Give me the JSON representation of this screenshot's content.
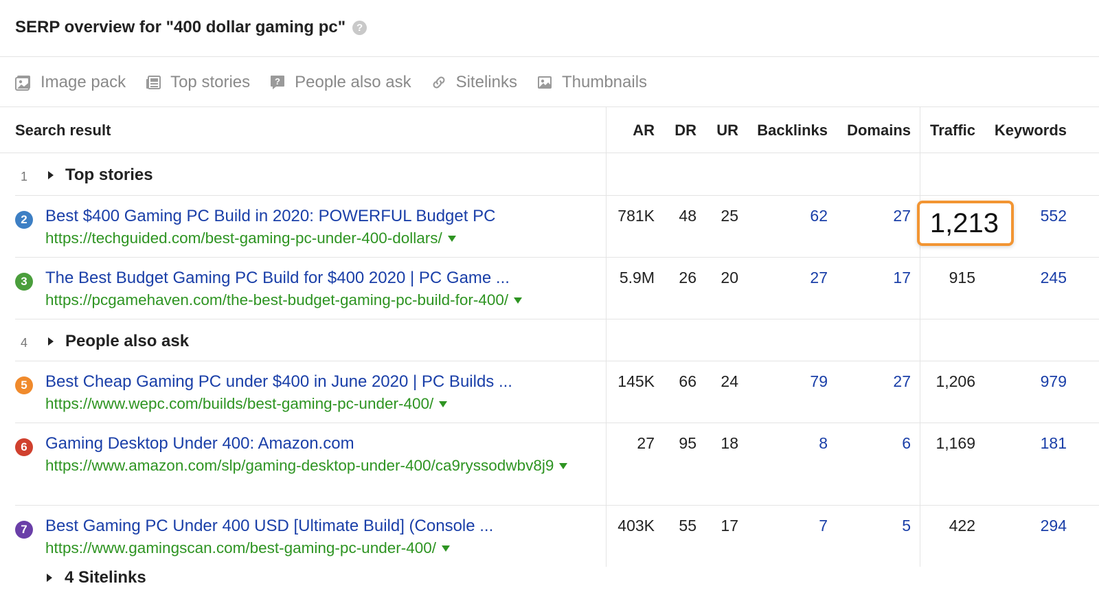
{
  "header": {
    "title": "SERP overview for \"400 dollar gaming pc\"",
    "help": "?"
  },
  "features": [
    {
      "label": "Image pack",
      "icon": "image-pack-icon"
    },
    {
      "label": "Top stories",
      "icon": "top-stories-icon"
    },
    {
      "label": "People also ask",
      "icon": "people-also-ask-icon"
    },
    {
      "label": "Sitelinks",
      "icon": "sitelinks-icon"
    },
    {
      "label": "Thumbnails",
      "icon": "thumbnails-icon"
    }
  ],
  "columns": {
    "search_result": "Search result",
    "ar": "AR",
    "dr": "DR",
    "ur": "UR",
    "backlinks": "Backlinks",
    "domains": "Domains",
    "traffic": "Traffic",
    "keywords": "Keywords"
  },
  "groups": [
    {
      "num": "1",
      "label": "Top stories"
    },
    {
      "num": "4",
      "label": "People also ask"
    }
  ],
  "results": [
    {
      "pos": "2",
      "color": "#3d7fc4",
      "title": "Best $400 Gaming PC Build in 2020: POWERFUL Budget PC",
      "url": "https://techguided.com/best-gaming-pc-under-400-dollars/",
      "ar": "781K",
      "dr": "48",
      "ur": "25",
      "backlinks": "62",
      "domains": "27",
      "traffic": "1,213",
      "keywords": "552"
    },
    {
      "pos": "3",
      "color": "#4a9e3c",
      "title": "The Best Budget Gaming PC Build for $400 2020 | PC Game ...",
      "url": "https://pcgamehaven.com/the-best-budget-gaming-pc-build-for-400/",
      "ar": "5.9M",
      "dr": "26",
      "ur": "20",
      "backlinks": "27",
      "domains": "17",
      "traffic": "915",
      "keywords": "245"
    },
    {
      "pos": "5",
      "color": "#f08a2c",
      "title": "Best Cheap Gaming PC under $400 in June 2020 | PC Builds ...",
      "url": "https://www.wepc.com/builds/best-gaming-pc-under-400/",
      "ar": "145K",
      "dr": "66",
      "ur": "24",
      "backlinks": "79",
      "domains": "27",
      "traffic": "1,206",
      "keywords": "979"
    },
    {
      "pos": "6",
      "color": "#d0402e",
      "title": "Gaming Desktop Under 400: Amazon.com",
      "url": "https://www.amazon.com/slp/gaming-desktop-under-400/ca9ryssodwbv8j9",
      "ar": "27",
      "dr": "95",
      "ur": "18",
      "backlinks": "8",
      "domains": "6",
      "traffic": "1,169",
      "keywords": "181"
    },
    {
      "pos": "7",
      "color": "#6a3fa8",
      "title": "Best Gaming PC Under 400 USD [Ultimate Build] (Console ...",
      "url": "https://www.gamingscan.com/best-gaming-pc-under-400/",
      "ar": "403K",
      "dr": "55",
      "ur": "17",
      "backlinks": "7",
      "domains": "5",
      "traffic": "422",
      "keywords": "294"
    }
  ],
  "highlight": {
    "value": "1,213",
    "color": "#f29533"
  },
  "sitelinks": {
    "label": "4 Sitelinks"
  }
}
